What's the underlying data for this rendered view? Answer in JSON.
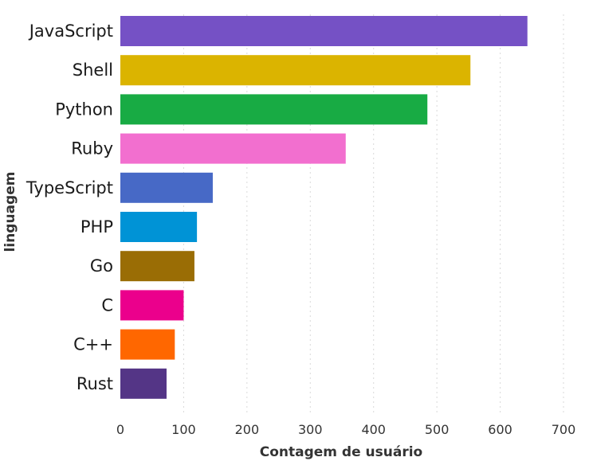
{
  "chart_data": {
    "type": "bar",
    "orientation": "horizontal",
    "categories": [
      "JavaScript",
      "Shell",
      "Python",
      "Ruby",
      "TypeScript",
      "PHP",
      "Go",
      "C",
      "C++",
      "Rust"
    ],
    "values": [
      643,
      553,
      485,
      356,
      146,
      121,
      117,
      100,
      86,
      73
    ],
    "colors": [
      "#7551c5",
      "#dbb400",
      "#18ab44",
      "#f26fcf",
      "#4769c6",
      "#0093d6",
      "#9a6d05",
      "#eb008c",
      "#ff6700",
      "#543586"
    ],
    "xlabel": "Contagem de usuário",
    "ylabel": "linguagem",
    "xlim": [
      0,
      700
    ],
    "xticks": [
      0,
      100,
      200,
      300,
      400,
      500,
      600,
      700
    ],
    "grid": true,
    "legend": "none"
  }
}
